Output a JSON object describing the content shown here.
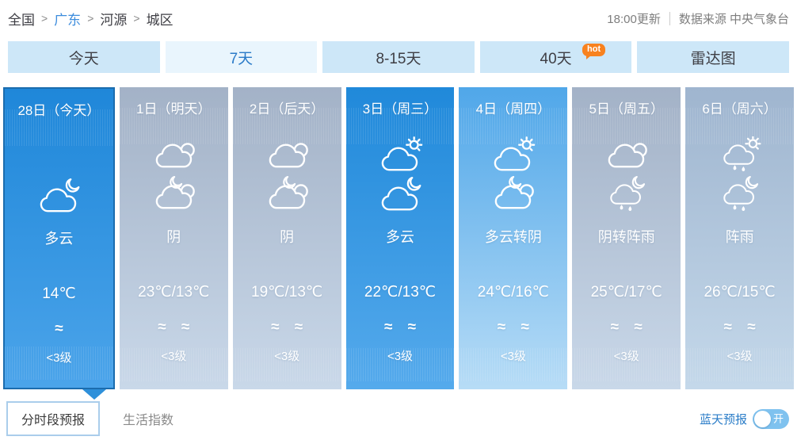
{
  "breadcrumb": {
    "separator": ">",
    "items": [
      {
        "label": "全国",
        "link": false
      },
      {
        "label": "广东",
        "link": true
      },
      {
        "label": "河源",
        "link": false
      },
      {
        "label": "城区",
        "link": false
      }
    ]
  },
  "meta": {
    "update_time": "18:00更新",
    "source": "数据来源 中央气象台"
  },
  "tabs": [
    {
      "label": "今天"
    },
    {
      "label": "7天",
      "selected": true
    },
    {
      "label": "8-15天"
    },
    {
      "label": "40天",
      "badge": "hot"
    },
    {
      "label": "雷达图"
    }
  ],
  "days": [
    {
      "date": "28日（今天）",
      "icon_day": "",
      "icon_night": "cloud-moon",
      "weather": "多云",
      "temp": "14℃",
      "wind_marks": "≈",
      "wind_level": "<3级",
      "variant": "today",
      "selected": true
    },
    {
      "date": "1日（明天）",
      "icon_day": "cloud2",
      "icon_night": "cloud-moon-cloud",
      "weather": "阴",
      "temp": "23℃/13℃",
      "wind_marks": "≈ ≈",
      "wind_level": "<3级",
      "variant": "gray"
    },
    {
      "date": "2日（后天）",
      "icon_day": "cloud2",
      "icon_night": "cloud-moon-cloud",
      "weather": "阴",
      "temp": "19℃/13℃",
      "wind_marks": "≈ ≈",
      "wind_level": "<3级",
      "variant": "gray"
    },
    {
      "date": "3日（周三）",
      "icon_day": "cloud-sun",
      "icon_night": "cloud-moon",
      "weather": "多云",
      "temp": "22℃/13℃",
      "wind_marks": "≈ ≈",
      "wind_level": "<3级",
      "variant": "blue"
    },
    {
      "date": "4日（周四）",
      "icon_day": "cloud-sun",
      "icon_night": "cloud-moon-cloud",
      "weather": "多云转阴",
      "temp": "24℃/16℃",
      "wind_marks": "≈ ≈",
      "wind_level": "<3级",
      "variant": "lightblue"
    },
    {
      "date": "5日（周五）",
      "icon_day": "cloud2",
      "icon_night": "rain-moon",
      "weather": "阴转阵雨",
      "temp": "25℃/17℃",
      "wind_marks": "≈ ≈",
      "wind_level": "<3级",
      "variant": "gray"
    },
    {
      "date": "6日（周六）",
      "icon_day": "rain-sun",
      "icon_night": "rain-moon",
      "weather": "阵雨",
      "temp": "26℃/15℃",
      "wind_marks": "≈ ≈",
      "wind_level": "<3级",
      "variant": "gray2"
    }
  ],
  "footer": {
    "hourly_label": "分时段预报",
    "life_index_label": "生活指数",
    "blue_sky_label": "蓝天预报",
    "toggle_state": "开"
  },
  "colors": {
    "accent_blue": "#2089da",
    "selected_border": "#1b6cae",
    "tab_bg": "#cde7f8",
    "tab_selected_bg": "#e9f5fd",
    "tab_selected_text": "#2a7ac8",
    "hot_badge": "#f8821f",
    "toggle_bg": "#7fc2ef",
    "link_blue": "#3e8ddd"
  }
}
